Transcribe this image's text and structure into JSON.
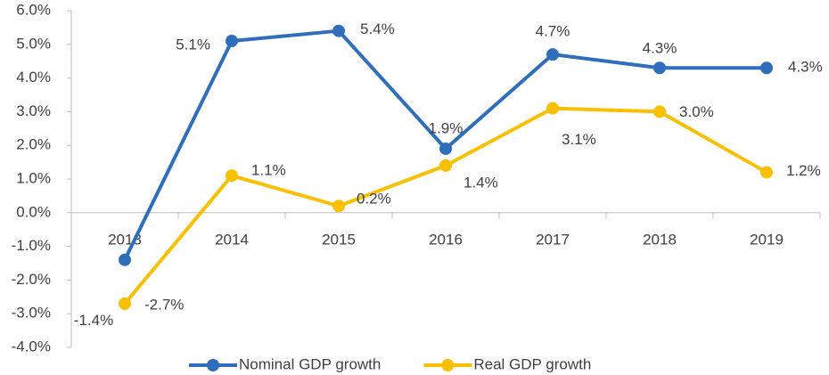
{
  "chart_data": {
    "type": "line",
    "categories": [
      "2013",
      "2014",
      "2015",
      "2016",
      "2017",
      "2018",
      "2019"
    ],
    "series": [
      {
        "name": "Nominal GDP growth",
        "color": "#2f6eba",
        "values": [
          -1.4,
          5.1,
          5.4,
          1.9,
          4.7,
          4.3,
          4.3
        ],
        "value_labels": [
          "-1.4%",
          "5.1%",
          "5.4%",
          "1.9%",
          "4.7%",
          "4.3%",
          "4.3%"
        ]
      },
      {
        "name": "Real GDP growth",
        "color": "#f9c000",
        "values": [
          -2.7,
          1.1,
          0.2,
          1.4,
          3.1,
          3.0,
          1.2
        ],
        "value_labels": [
          "-2.7%",
          "1.1%",
          "0.2%",
          "1.4%",
          "3.1%",
          "3.0%",
          "1.2%"
        ]
      }
    ],
    "ylim": [
      -4,
      6
    ],
    "yticks": [
      {
        "value": -4,
        "label": "-4.0%"
      },
      {
        "value": -3,
        "label": "-3.0%"
      },
      {
        "value": -2,
        "label": "-2.0%"
      },
      {
        "value": -1,
        "label": "-1.0%"
      },
      {
        "value": 0,
        "label": "0.0%"
      },
      {
        "value": 1,
        "label": "1.0%"
      },
      {
        "value": 2,
        "label": "2.0%"
      },
      {
        "value": 3,
        "label": "3.0%"
      },
      {
        "value": 4,
        "label": "4.0%"
      },
      {
        "value": 5,
        "label": "5.0%"
      },
      {
        "value": 6,
        "label": "6.0%"
      }
    ],
    "legend": "bottom"
  }
}
